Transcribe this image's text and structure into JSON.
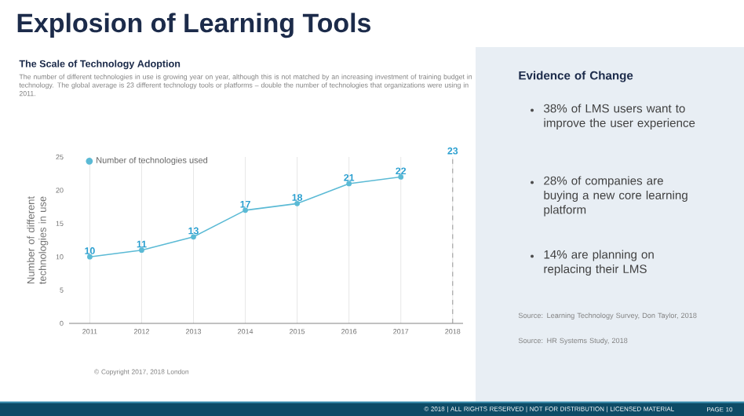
{
  "chart_data": {
    "type": "line",
    "title": "Explosion of Learning Tools",
    "subtitle": "The Scale of Technology Adoption",
    "annotations": [
      "The number of different technologies in use is growing year on year, although this is not matched by an increasing investment of training budget in technology. The global average is 23 different technology tools or platforms – double the number of technologies that organizations were using in 2011.",
      "© Copyright 2017, 2018 London",
      "Evidence of Change",
      "38% of LMS users want to improve the user experience",
      "28% of companies are buying a new core learning platform",
      "14% are planning on replacing their LMS",
      "Source: Learning Technology Survey, Don Taylor, 2018",
      "Source: HR Systems Study, 2018",
      "© 2018 | ALL RIGHTS RESERVED | NOT FOR DISTRIBUTION | LICENSED MATERIAL",
      "PAGE 10"
    ],
    "ylabel": "Number of different technologies in use",
    "categories": [
      "2011",
      "2012",
      "2013",
      "2014",
      "2015",
      "2016",
      "2017",
      "2018"
    ],
    "series": [
      {
        "name": "Number of technologies used",
        "color": "#5bbad5",
        "values": [
          10,
          11,
          13,
          17,
          18,
          21,
          22,
          null
        ]
      }
    ],
    "ylim": [
      0,
      25
    ],
    "yticks": [
      0,
      5,
      10,
      15,
      20,
      25
    ],
    "data_labels": true,
    "legend": "top left",
    "marker": "circle",
    "grid": "x",
    "line_style": "solid",
    "ref_lines": [
      {
        "axis": "x",
        "value": "2018",
        "label": "23",
        "line_style": "dashed",
        "color": "#9a9a9a"
      }
    ]
  }
}
